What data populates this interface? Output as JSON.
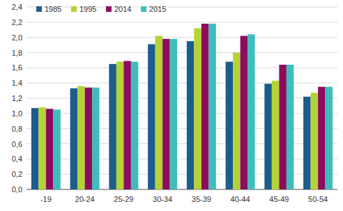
{
  "chart_data": {
    "type": "bar",
    "categories": [
      "-19",
      "20-24",
      "25-29",
      "30-34",
      "35-39",
      "40-44",
      "45-49",
      "50-54"
    ],
    "series": [
      {
        "name": "1985",
        "color": "#1d5d8c",
        "values": [
          1.07,
          1.33,
          1.65,
          1.91,
          1.95,
          1.68,
          1.39,
          1.22
        ]
      },
      {
        "name": "1995",
        "color": "#b5d334",
        "values": [
          1.08,
          1.36,
          1.68,
          2.02,
          2.12,
          1.8,
          1.43,
          1.27
        ]
      },
      {
        "name": "2014",
        "color": "#8c0d5e",
        "values": [
          1.06,
          1.34,
          1.69,
          1.98,
          2.18,
          2.02,
          1.64,
          1.35
        ]
      },
      {
        "name": "2015",
        "color": "#3fbdbd",
        "values": [
          1.05,
          1.34,
          1.68,
          1.98,
          2.18,
          2.04,
          1.64,
          1.35
        ]
      }
    ],
    "ylim": [
      0,
      2.4
    ],
    "yticks": [
      {
        "value": 0,
        "label": "0,0"
      },
      {
        "value": 0.2,
        "label": "0,2"
      },
      {
        "value": 0.4,
        "label": "0,4"
      },
      {
        "value": 0.6,
        "label": "0,6"
      },
      {
        "value": 0.8,
        "label": "0,8"
      },
      {
        "value": 1.0,
        "label": "1,0"
      },
      {
        "value": 1.2,
        "label": "1,2"
      },
      {
        "value": 1.4,
        "label": "1,4"
      },
      {
        "value": 1.6,
        "label": "1,6"
      },
      {
        "value": 1.8,
        "label": "1,8"
      },
      {
        "value": 2.0,
        "label": "2,0"
      },
      {
        "value": 2.2,
        "label": "2,2"
      },
      {
        "value": 2.4,
        "label": "2,4"
      }
    ],
    "grid": true,
    "legend": "top-left"
  }
}
